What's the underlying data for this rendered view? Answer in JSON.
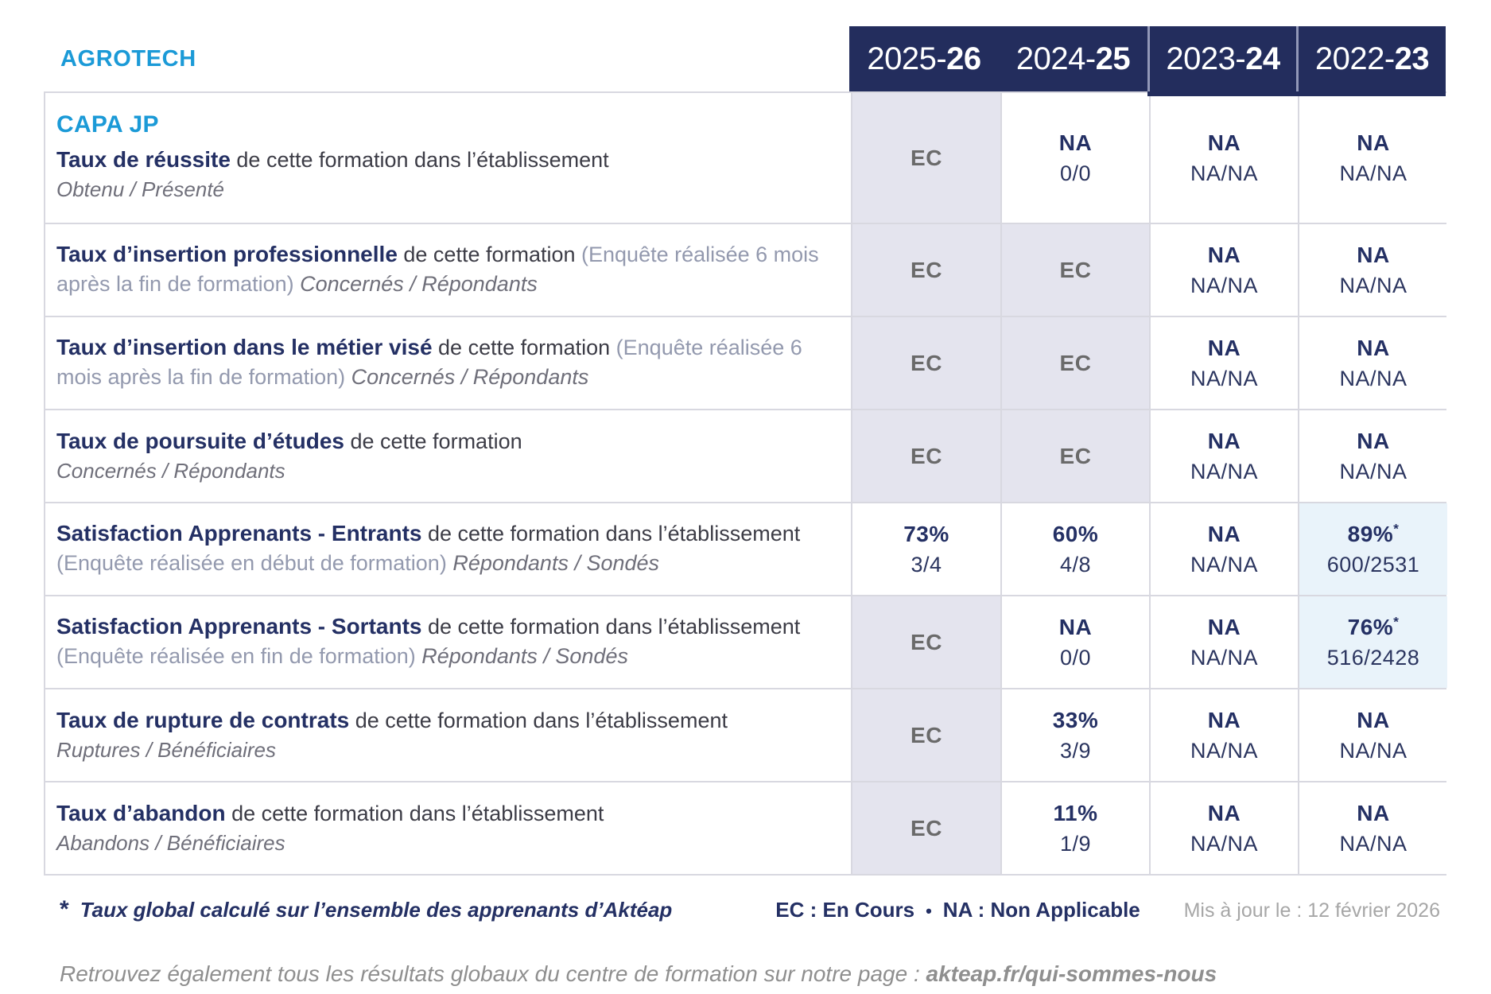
{
  "brand": "AGROTECH",
  "accent_color": "#1b9ad7",
  "navy_color": "#232d5d",
  "years": [
    {
      "prefix": "2025-",
      "suffix": "26"
    },
    {
      "prefix": "2024-",
      "suffix": "25"
    },
    {
      "prefix": "2023-",
      "suffix": "24"
    },
    {
      "prefix": "2022-",
      "suffix": "23"
    }
  ],
  "rows": [
    {
      "program": "CAPA JP",
      "title": "Taux de réussite",
      "desc": " de cette formation dans l’établissement",
      "paren": "",
      "caption_inline": "",
      "caption_block": "Obtenu / Présenté",
      "cells": [
        {
          "bg": "lav",
          "main": "EC",
          "star": "",
          "sub": ""
        },
        {
          "bg": "white",
          "main": "NA",
          "star": "",
          "sub": "0/0"
        },
        {
          "bg": "white",
          "main": "NA",
          "star": "",
          "sub": "NA/NA"
        },
        {
          "bg": "white",
          "main": "NA",
          "star": "",
          "sub": "NA/NA"
        }
      ]
    },
    {
      "program": "",
      "title": "Taux d’insertion professionnelle",
      "desc": " de cette formation ",
      "paren": "(Enquête réalisée 6 mois après la fin de formation) ",
      "caption_inline": "Concernés / Répondants",
      "caption_block": "",
      "cells": [
        {
          "bg": "lav",
          "main": "EC",
          "star": "",
          "sub": ""
        },
        {
          "bg": "lav",
          "main": "EC",
          "star": "",
          "sub": ""
        },
        {
          "bg": "white",
          "main": "NA",
          "star": "",
          "sub": "NA/NA"
        },
        {
          "bg": "white",
          "main": "NA",
          "star": "",
          "sub": "NA/NA"
        }
      ]
    },
    {
      "program": "",
      "title": "Taux d’insertion dans le métier visé",
      "desc": " de cette formation ",
      "paren": "(Enquête réalisée 6 mois après la fin de formation) ",
      "caption_inline": "Concernés / Répondants",
      "caption_block": "",
      "cells": [
        {
          "bg": "lav",
          "main": "EC",
          "star": "",
          "sub": ""
        },
        {
          "bg": "lav",
          "main": "EC",
          "star": "",
          "sub": ""
        },
        {
          "bg": "white",
          "main": "NA",
          "star": "",
          "sub": "NA/NA"
        },
        {
          "bg": "white",
          "main": "NA",
          "star": "",
          "sub": "NA/NA"
        }
      ]
    },
    {
      "program": "",
      "title": "Taux de poursuite d’études",
      "desc": " de cette formation",
      "paren": "",
      "caption_inline": "",
      "caption_block": "Concernés / Répondants",
      "cells": [
        {
          "bg": "lav",
          "main": "EC",
          "star": "",
          "sub": ""
        },
        {
          "bg": "lav",
          "main": "EC",
          "star": "",
          "sub": ""
        },
        {
          "bg": "white",
          "main": "NA",
          "star": "",
          "sub": "NA/NA"
        },
        {
          "bg": "white",
          "main": "NA",
          "star": "",
          "sub": "NA/NA"
        }
      ]
    },
    {
      "program": "",
      "title": "Satisfaction Apprenants - Entrants",
      "desc": " de cette formation dans l’établissement ",
      "paren": "(Enquête réalisée en début de formation) ",
      "caption_inline": "Répondants / Sondés",
      "caption_block": "",
      "cells": [
        {
          "bg": "white",
          "main": "73%",
          "star": "",
          "sub": "3/4"
        },
        {
          "bg": "white",
          "main": "60%",
          "star": "",
          "sub": "4/8"
        },
        {
          "bg": "white",
          "main": "NA",
          "star": "",
          "sub": "NA/NA"
        },
        {
          "bg": "blue",
          "main": "89%",
          "star": "*",
          "sub": "600/2531"
        }
      ]
    },
    {
      "program": "",
      "title": "Satisfaction Apprenants - Sortants",
      "desc": " de cette formation dans l’établissement ",
      "paren": "(Enquête réalisée en fin de formation) ",
      "caption_inline": "Répondants / Sondés",
      "caption_block": "",
      "cells": [
        {
          "bg": "lav",
          "main": "EC",
          "star": "",
          "sub": ""
        },
        {
          "bg": "white",
          "main": "NA",
          "star": "",
          "sub": "0/0"
        },
        {
          "bg": "white",
          "main": "NA",
          "star": "",
          "sub": "NA/NA"
        },
        {
          "bg": "blue",
          "main": "76%",
          "star": "*",
          "sub": "516/2428"
        }
      ]
    },
    {
      "program": "",
      "title": "Taux de rupture de contrats",
      "desc": " de cette formation dans l’établissement",
      "paren": "",
      "caption_inline": "",
      "caption_block": "Ruptures / Bénéficiaires",
      "cells": [
        {
          "bg": "lav",
          "main": "EC",
          "star": "",
          "sub": ""
        },
        {
          "bg": "white",
          "main": "33%",
          "star": "",
          "sub": "3/9"
        },
        {
          "bg": "white",
          "main": "NA",
          "star": "",
          "sub": "NA/NA"
        },
        {
          "bg": "white",
          "main": "NA",
          "star": "",
          "sub": "NA/NA"
        }
      ]
    },
    {
      "program": "",
      "title": "Taux d’abandon",
      "desc": " de cette formation dans l’établissement",
      "paren": "",
      "caption_inline": "",
      "caption_block": "Abandons / Bénéficiaires",
      "cells": [
        {
          "bg": "lav",
          "main": "EC",
          "star": "",
          "sub": ""
        },
        {
          "bg": "white",
          "main": "11%",
          "star": "",
          "sub": "1/9"
        },
        {
          "bg": "white",
          "main": "NA",
          "star": "",
          "sub": "NA/NA"
        },
        {
          "bg": "white",
          "main": "NA",
          "star": "",
          "sub": "NA/NA"
        }
      ]
    }
  ],
  "footer": {
    "star": "*",
    "footnote": "Taux global calculé sur l’ensemble des apprenants d’Aktéap",
    "legend_ec": "EC : En Cours",
    "legend_sep": "•",
    "legend_na": "NA : Non Applicable",
    "updated": "Mis à jour le : 12 février 2026"
  },
  "infoline": {
    "text": "Retrouvez également tous les résultats globaux du centre de formation sur notre page : ",
    "link": "akteap.fr/qui-sommes-nous"
  }
}
